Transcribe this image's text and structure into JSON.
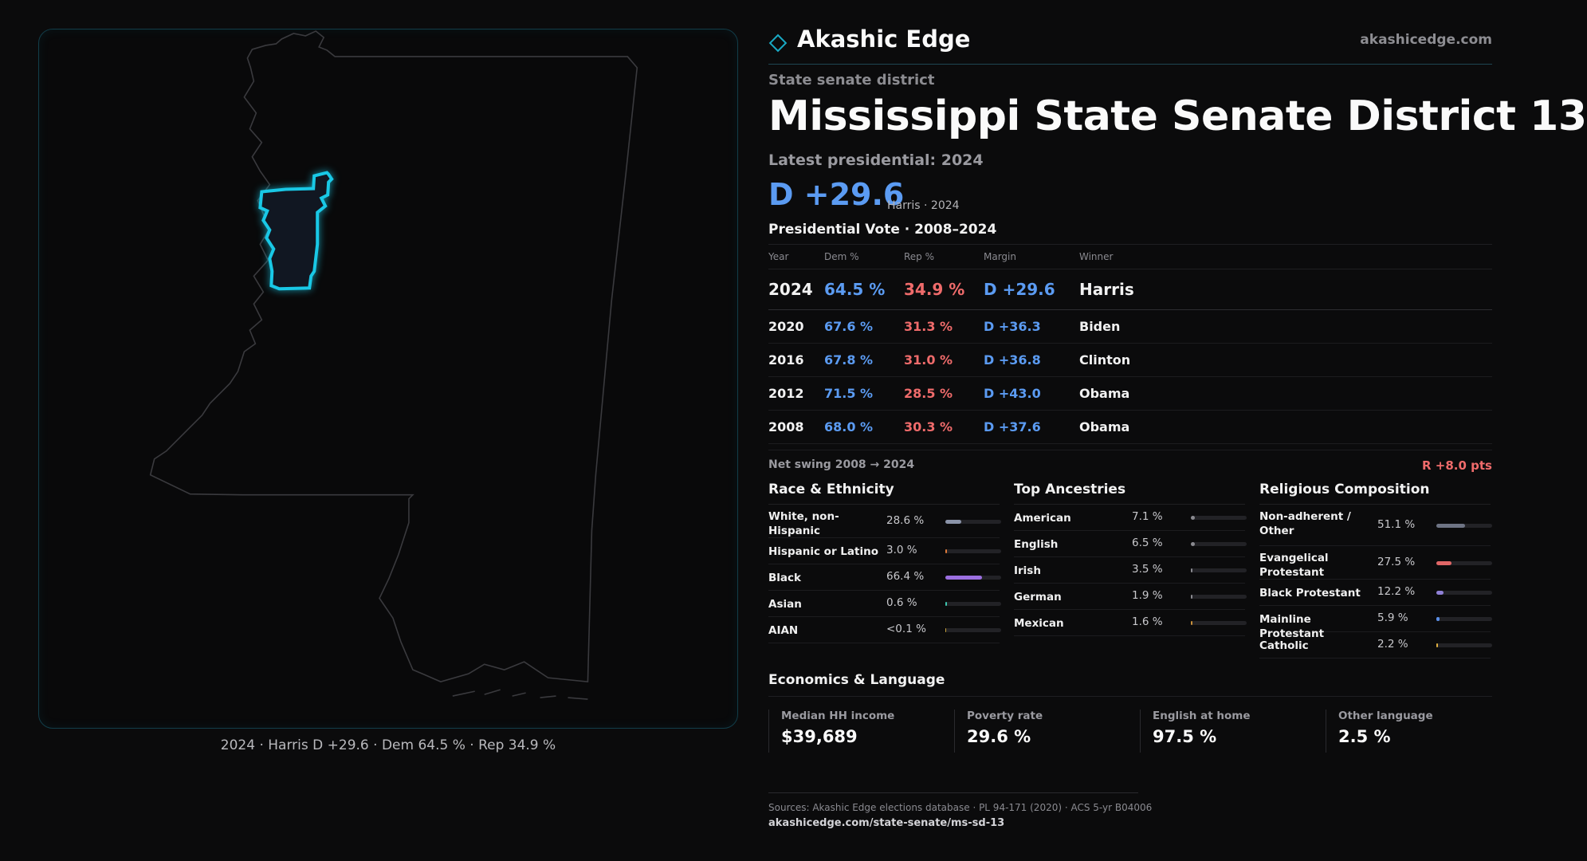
{
  "brand": {
    "name": "Akashic Edge",
    "url": "akashicedge.com"
  },
  "header": {
    "eyebrow": "State senate district",
    "title": "Mississippi State Senate District 13",
    "latest_label": "Latest presidential: 2024",
    "margin": "D +29.6",
    "margin_sub": "Harris · 2024"
  },
  "vote": {
    "heading": "Presidential Vote · 2008–2024",
    "columns": [
      "Year",
      "Dem %",
      "Rep %",
      "Margin",
      "Winner"
    ],
    "rows": [
      {
        "year": "2024",
        "dem": "64.5 %",
        "rep": "34.9 %",
        "margin": "D +29.6",
        "winner": "Harris"
      },
      {
        "year": "2020",
        "dem": "67.6 %",
        "rep": "31.3 %",
        "margin": "D +36.3",
        "winner": "Biden"
      },
      {
        "year": "2016",
        "dem": "67.8 %",
        "rep": "31.0 %",
        "margin": "D +36.8",
        "winner": "Clinton"
      },
      {
        "year": "2012",
        "dem": "71.5 %",
        "rep": "28.5 %",
        "margin": "D +43.0",
        "winner": "Obama"
      },
      {
        "year": "2008",
        "dem": "68.0 %",
        "rep": "30.3 %",
        "margin": "D +37.6",
        "winner": "Obama"
      }
    ],
    "swing_label": "Net swing 2008 → 2024",
    "swing_value": "R +8.0 pts"
  },
  "race": {
    "title": "Race & Ethnicity",
    "rows": [
      {
        "label": "White, non-Hispanic",
        "value": "28.6 %",
        "share": 0.286,
        "color": "#8a93a8"
      },
      {
        "label": "Hispanic or Latino",
        "value": "3.0 %",
        "share": 0.03,
        "color": "#e07a3a"
      },
      {
        "label": "Black",
        "value": "66.4 %",
        "share": 0.664,
        "color": "#9b6fe0"
      },
      {
        "label": "Asian",
        "value": "0.6 %",
        "share": 0.006,
        "color": "#3ec7b0"
      },
      {
        "label": "AIAN",
        "value": "<0.1 %",
        "share": 0.0,
        "color": "#c8a23a"
      }
    ]
  },
  "ancestry": {
    "title": "Top Ancestries",
    "rows": [
      {
        "label": "American",
        "value": "7.1 %",
        "share": 0.071,
        "color": "#8a8a90"
      },
      {
        "label": "English",
        "value": "6.5 %",
        "share": 0.065,
        "color": "#8a8a90"
      },
      {
        "label": "Irish",
        "value": "3.5 %",
        "share": 0.035,
        "color": "#8a8a90"
      },
      {
        "label": "German",
        "value": "1.9 %",
        "share": 0.019,
        "color": "#8a8a90"
      },
      {
        "label": "Mexican",
        "value": "1.6 %",
        "share": 0.016,
        "color": "#c8903a"
      }
    ]
  },
  "religion": {
    "title": "Religious Composition",
    "rows": [
      {
        "label": "Non-adherent / Other",
        "value": "51.1 %",
        "share": 0.511,
        "color": "#6e7484"
      },
      {
        "label": "Evangelical Protestant",
        "value": "27.5 %",
        "share": 0.275,
        "color": "#e06666"
      },
      {
        "label": "Black Protestant",
        "value": "12.2 %",
        "share": 0.122,
        "color": "#8f80d6"
      },
      {
        "label": "Mainline Protestant",
        "value": "5.9 %",
        "share": 0.059,
        "color": "#5b8fe8"
      },
      {
        "label": "Catholic",
        "value": "2.2 %",
        "share": 0.022,
        "color": "#e0b040"
      }
    ]
  },
  "economics": {
    "title": "Economics & Language",
    "cards": [
      {
        "label": "Median HH income",
        "value": "$39,689"
      },
      {
        "label": "Poverty rate",
        "value": "29.6 %"
      },
      {
        "label": "English at home",
        "value": "97.5 %"
      },
      {
        "label": "Other language",
        "value": "2.5 %"
      }
    ]
  },
  "map": {
    "caption": "2024 · Harris D +29.6 · Dem 64.5 % · Rep 34.9 %",
    "highlight": "#19c8e6"
  },
  "footer": {
    "sources": "Sources: Akashic Edge elections database · PL 94-171 (2020) · ACS 5-yr B04006",
    "url": "akashicedge.com/state-senate/ms-sd-13"
  }
}
